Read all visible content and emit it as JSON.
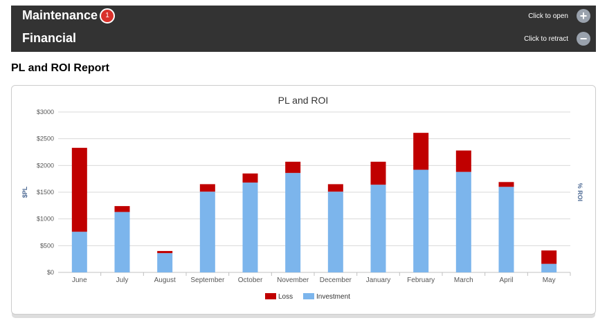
{
  "header": {
    "rows": [
      {
        "title": "Maintenance",
        "badge": "1",
        "action_label": "Click to open",
        "button_icon": "plus-icon",
        "button_glyph": "+"
      },
      {
        "title": "Financial",
        "action_label": "Click to retract",
        "button_icon": "minus-icon",
        "button_glyph": "−"
      }
    ]
  },
  "report": {
    "title": "PL and ROI Report"
  },
  "colors": {
    "loss": "#c00000",
    "investment": "#7cb5ec",
    "grid": "#d8d8d8"
  },
  "chart_data": {
    "type": "bar",
    "stacked": true,
    "title": "PL and ROI",
    "ylabel": "$PL",
    "y2label": "% ROI",
    "ylim": [
      0,
      3000
    ],
    "yticks": [
      "$0",
      "$500",
      "$1000",
      "$1500",
      "$2000",
      "$2500",
      "$3000"
    ],
    "categories": [
      "June",
      "July",
      "August",
      "September",
      "October",
      "November",
      "December",
      "January",
      "February",
      "March",
      "April",
      "May"
    ],
    "series": [
      {
        "name": "Investment",
        "values": [
          760,
          1130,
          360,
          1510,
          1680,
          1860,
          1510,
          1640,
          1920,
          1880,
          1600,
          160
        ]
      },
      {
        "name": "Loss",
        "values": [
          1570,
          110,
          40,
          140,
          170,
          210,
          140,
          430,
          690,
          400,
          90,
          250
        ]
      }
    ],
    "legend": [
      "Loss",
      "Investment"
    ],
    "legend_position": "bottom",
    "grid": true
  }
}
